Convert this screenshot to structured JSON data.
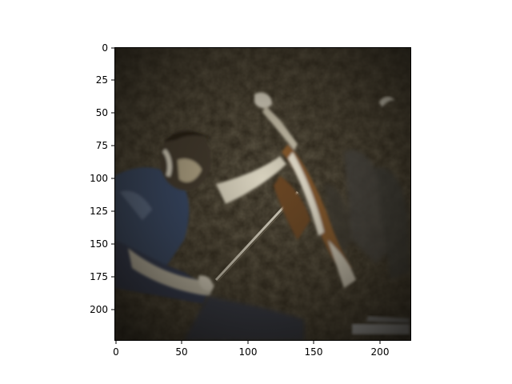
{
  "figure": {
    "image_description_icon": "image-of-a-cellist-playing-under-stage-lighting",
    "colors": {
      "background": "#ffffff",
      "axis": "#000000",
      "image_base": "#2a2419",
      "highlight": "#f2eee0",
      "shirt_blue": "#33466d",
      "wood": "#8a5a2a"
    },
    "x_ticks": [
      "0",
      "50",
      "100",
      "150",
      "200"
    ],
    "y_ticks": [
      "0",
      "25",
      "50",
      "75",
      "100",
      "125",
      "150",
      "175",
      "200"
    ],
    "x_range": [
      0,
      224
    ],
    "y_range": [
      0,
      224
    ]
  }
}
